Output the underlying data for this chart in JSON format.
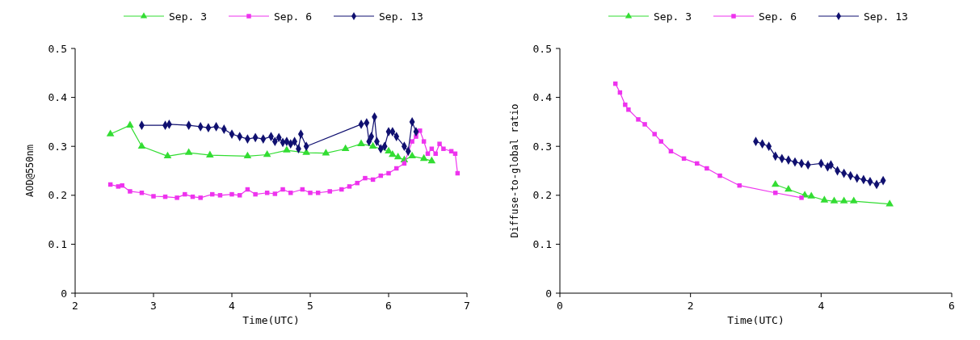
{
  "chart_data": [
    {
      "type": "line",
      "xlabel": "Time(UTC)",
      "ylabel": "AOD@550nm",
      "xlim": [
        2,
        7
      ],
      "xticks": [
        2,
        3,
        4,
        5,
        6,
        7
      ],
      "ylim": [
        0,
        0.5
      ],
      "yticks": [
        0,
        0.1,
        0.2,
        0.3,
        0.4,
        0.5
      ],
      "grid": false,
      "legend": "top",
      "series": [
        {
          "name": "Sep. 3",
          "color": "#33dd33",
          "marker": "triangle",
          "x": [
            2.45,
            2.7,
            2.85,
            3.18,
            3.45,
            3.72,
            4.2,
            4.45,
            4.7,
            4.95,
            5.2,
            5.45,
            5.65,
            5.8,
            5.9,
            6.0,
            6.05,
            6.12,
            6.2,
            6.3,
            6.45,
            6.55
          ],
          "values": [
            0.325,
            0.343,
            0.3,
            0.28,
            0.287,
            0.282,
            0.28,
            0.283,
            0.292,
            0.287,
            0.286,
            0.295,
            0.305,
            0.3,
            null,
            0.29,
            0.283,
            0.278,
            0.272,
            0.28,
            0.275,
            0.27
          ]
        },
        {
          "name": "Sep. 6",
          "color": "#ee33ee",
          "marker": "square",
          "x": [
            2.45,
            2.55,
            2.6,
            2.7,
            2.85,
            3.0,
            3.15,
            3.3,
            3.4,
            3.5,
            3.6,
            3.75,
            3.85,
            4.0,
            4.1,
            4.2,
            4.3,
            4.45,
            4.55,
            4.65,
            4.75,
            4.9,
            5.0,
            5.1,
            5.25,
            5.4,
            5.5,
            5.6,
            5.7,
            5.8,
            5.9,
            6.0,
            6.1,
            6.2,
            6.25,
            6.3,
            6.35,
            6.4,
            6.45,
            6.5,
            6.55,
            6.6,
            6.65,
            6.7,
            6.8,
            6.85,
            6.88
          ],
          "values": [
            0.222,
            0.218,
            0.22,
            0.208,
            0.205,
            0.198,
            0.197,
            0.195,
            0.202,
            0.197,
            0.195,
            0.202,
            0.2,
            0.202,
            0.2,
            0.212,
            0.202,
            0.205,
            0.203,
            0.212,
            0.205,
            0.212,
            0.205,
            0.205,
            0.208,
            0.212,
            0.218,
            0.225,
            0.235,
            0.232,
            0.24,
            0.245,
            0.255,
            0.265,
            null,
            0.31,
            0.32,
            0.332,
            0.31,
            0.285,
            0.295,
            0.285,
            0.305,
            0.295,
            0.29,
            0.285,
            0.245
          ]
        },
        {
          "name": "Sep. 13",
          "color": "#101070",
          "marker": "diamond",
          "x": [
            2.85,
            3.15,
            3.2,
            3.45,
            3.6,
            3.7,
            3.8,
            3.9,
            4.0,
            4.1,
            4.2,
            4.3,
            4.4,
            4.5,
            4.55,
            4.6,
            4.65,
            4.7,
            4.75,
            4.8,
            4.85,
            4.88,
            4.95,
            5.65,
            5.72,
            5.75,
            5.78,
            5.82,
            5.85,
            5.9,
            5.95,
            6.0,
            6.05,
            6.1,
            6.2,
            6.25,
            6.3,
            6.35
          ],
          "values": [
            0.343,
            0.343,
            0.345,
            0.343,
            0.34,
            0.338,
            0.34,
            0.335,
            0.325,
            0.32,
            0.315,
            0.318,
            0.315,
            0.32,
            0.31,
            0.318,
            0.308,
            0.31,
            0.305,
            0.31,
            0.295,
            0.325,
            0.3,
            0.345,
            0.348,
            0.31,
            0.32,
            0.36,
            0.31,
            0.295,
            0.3,
            0.33,
            0.33,
            0.32,
            0.3,
            0.29,
            0.35,
            0.33
          ]
        }
      ]
    },
    {
      "type": "line",
      "xlabel": "Time(UTC)",
      "ylabel": "Diffuse-to-global ratio",
      "xlim": [
        0,
        6
      ],
      "xticks": [
        0,
        2,
        4,
        6
      ],
      "ylim": [
        0,
        0.5
      ],
      "yticks": [
        0,
        0.1,
        0.2,
        0.3,
        0.4,
        0.5
      ],
      "grid": false,
      "legend": "top",
      "series": [
        {
          "name": "Sep. 3",
          "color": "#33dd33",
          "marker": "triangle",
          "x": [
            3.3,
            3.5,
            3.75,
            3.85,
            4.05,
            4.2,
            4.35,
            4.5,
            5.05
          ],
          "values": [
            0.222,
            0.212,
            0.2,
            0.198,
            0.19,
            0.188,
            0.188,
            0.188,
            0.182
          ]
        },
        {
          "name": "Sep. 6",
          "color": "#ee33ee",
          "marker": "square",
          "x": [
            0.85,
            0.92,
            1.0,
            1.05,
            1.2,
            1.3,
            1.45,
            1.55,
            1.7,
            1.9,
            2.1,
            2.25,
            2.45,
            2.75,
            3.3,
            3.7
          ],
          "values": [
            0.428,
            0.41,
            0.385,
            0.375,
            0.355,
            0.345,
            0.325,
            0.31,
            0.29,
            0.275,
            0.265,
            0.255,
            0.24,
            0.22,
            0.205,
            0.195
          ]
        },
        {
          "name": "Sep. 13",
          "color": "#101070",
          "marker": "diamond",
          "x": [
            3.0,
            3.1,
            3.2,
            3.3,
            3.4,
            3.5,
            3.6,
            3.7,
            3.8,
            4.0,
            4.1,
            4.15,
            4.25,
            4.35,
            4.45,
            4.55,
            4.65,
            4.75,
            4.85,
            4.95
          ],
          "values": [
            0.31,
            0.305,
            0.3,
            0.28,
            0.275,
            0.272,
            0.268,
            0.265,
            0.262,
            0.265,
            0.258,
            0.262,
            0.25,
            0.245,
            0.24,
            0.235,
            0.232,
            0.228,
            0.222,
            0.23
          ]
        }
      ]
    }
  ]
}
